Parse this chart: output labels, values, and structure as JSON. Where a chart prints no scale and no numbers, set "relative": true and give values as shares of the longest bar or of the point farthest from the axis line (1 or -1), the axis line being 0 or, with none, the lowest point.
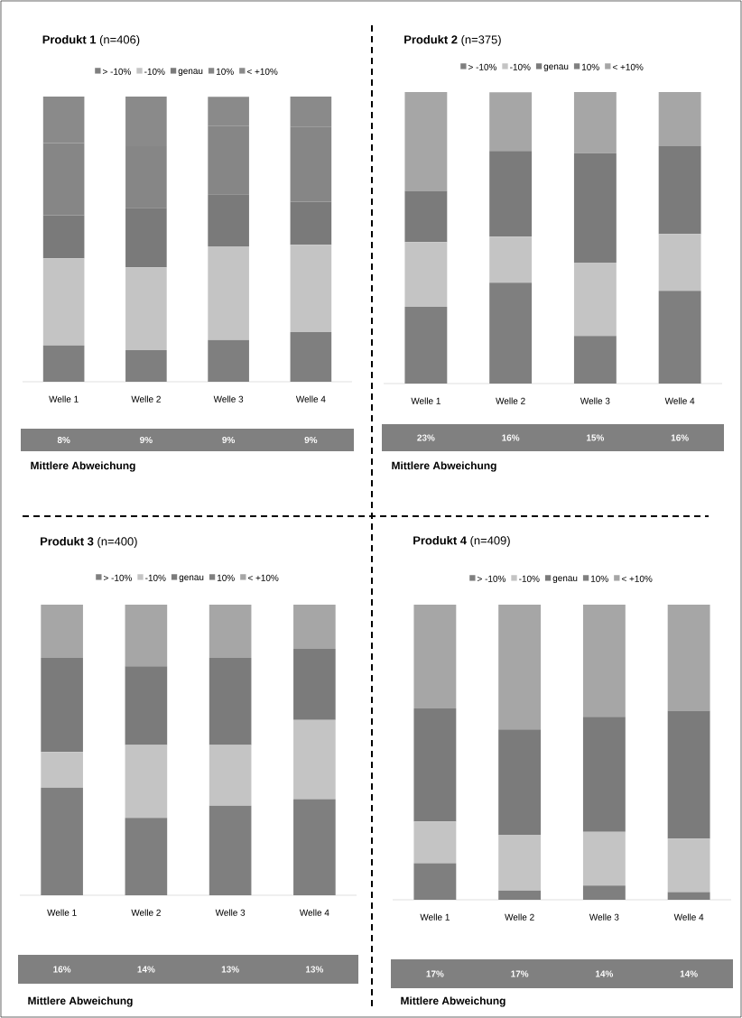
{
  "chart_data": [
    {
      "type": "bar",
      "stacked": true,
      "relative": true,
      "title": "**Produkt 1** (n=406)",
      "legend": "top",
      "categories": [
        "Welle 1",
        "Welle 2",
        "Welle 3",
        "Welle 4"
      ],
      "series": [
        {
          "name": "> -10%",
          "color": "#7f7f7f",
          "values": [
            0.127,
            0.111,
            0.146,
            0.174
          ]
        },
        {
          "name": "-10%",
          "color": "#c4c4c4",
          "values": [
            0.306,
            0.29,
            0.329,
            0.306
          ]
        },
        {
          "name": "genau",
          "color": "#7a7a7a",
          "values": [
            0.151,
            0.209,
            0.182,
            0.151
          ]
        },
        {
          "name": "10%",
          "color": "#868686",
          "values": [
            0.253,
            0.216,
            0.239,
            0.264
          ]
        },
        {
          "name": "< +10%",
          "color": "#8a8a8a",
          "values": [
            0.163,
            0.174,
            0.103,
            0.105
          ]
        }
      ],
      "annotations": [
        "8%",
        "9%",
        "9%",
        "9%",
        "Mittlere Abweichung"
      ]
    },
    {
      "type": "bar",
      "stacked": true,
      "relative": true,
      "title": "**Produkt 2** (n=375)",
      "legend": "top",
      "categories": [
        "Welle 1",
        "Welle 2",
        "Welle 3",
        "Welle 4"
      ],
      "series": [
        {
          "name": "> -10%",
          "color": "#7f7f7f",
          "values": [
            0.263,
            0.346,
            0.163,
            0.318
          ]
        },
        {
          "name": "-10%",
          "color": "#c4c4c4",
          "values": [
            0.222,
            0.158,
            0.252,
            0.195
          ]
        },
        {
          "name": "genau",
          "color": "#7b7b7b",
          "values": [
            0.176,
            0.294,
            0.375,
            0.301
          ]
        },
        {
          "name": "10%",
          "color": "#808080",
          "values": [
            null,
            null,
            null,
            null
          ]
        },
        {
          "name": "< +10%",
          "color": "#a6a6a6",
          "values": [
            0.339,
            0.201,
            0.21,
            0.186
          ]
        }
      ],
      "annotations": [
        "23%",
        "16%",
        "15%",
        "16%",
        "Mittlere Abweichung"
      ]
    },
    {
      "type": "bar",
      "stacked": true,
      "relative": true,
      "title": "**Produkt 3** (n=400)",
      "legend": "top",
      "categories": [
        "Welle 1",
        "Welle 2",
        "Welle 3",
        "Welle 4"
      ],
      "series": [
        {
          "name": "> -10%",
          "color": "#7f7f7f",
          "values": [
            0.37,
            0.266,
            0.308,
            0.331
          ]
        },
        {
          "name": "-10%",
          "color": "#c4c4c4",
          "values": [
            0.123,
            0.251,
            0.209,
            0.272
          ]
        },
        {
          "name": "genau",
          "color": "#7b7b7b",
          "values": [
            0.324,
            0.271,
            0.3,
            0.245
          ]
        },
        {
          "name": "10%",
          "color": "#808080",
          "values": [
            null,
            null,
            null,
            null
          ]
        },
        {
          "name": "< +10%",
          "color": "#a6a6a6",
          "values": [
            0.183,
            0.212,
            0.183,
            0.152
          ]
        }
      ],
      "annotations": [
        "16%",
        "14%",
        "13%",
        "13%",
        "Mittlere Abweichung"
      ]
    },
    {
      "type": "bar",
      "stacked": true,
      "relative": true,
      "title": "**Produkt 4** (n=409)",
      "legend": "top",
      "categories": [
        "Welle 1",
        "Welle 2",
        "Welle 3",
        "Welle 4"
      ],
      "series": [
        {
          "name": "> -10%",
          "color": "#7f7f7f",
          "values": [
            0.124,
            0.031,
            0.048,
            0.026
          ]
        },
        {
          "name": "-10%",
          "color": "#c4c4c4",
          "values": [
            0.141,
            0.189,
            0.182,
            0.181
          ]
        },
        {
          "name": "genau",
          "color": "#7b7b7b",
          "values": [
            0.383,
            0.357,
            0.39,
            0.434
          ]
        },
        {
          "name": "10%",
          "color": "#808080",
          "values": [
            null,
            null,
            null,
            null
          ]
        },
        {
          "name": "< +10%",
          "color": "#a6a6a6",
          "values": [
            0.352,
            0.423,
            0.38,
            0.359
          ]
        }
      ],
      "annotations": [
        "17%",
        "17%",
        "14%",
        "14%",
        "Mittlere Abweichung"
      ]
    }
  ]
}
